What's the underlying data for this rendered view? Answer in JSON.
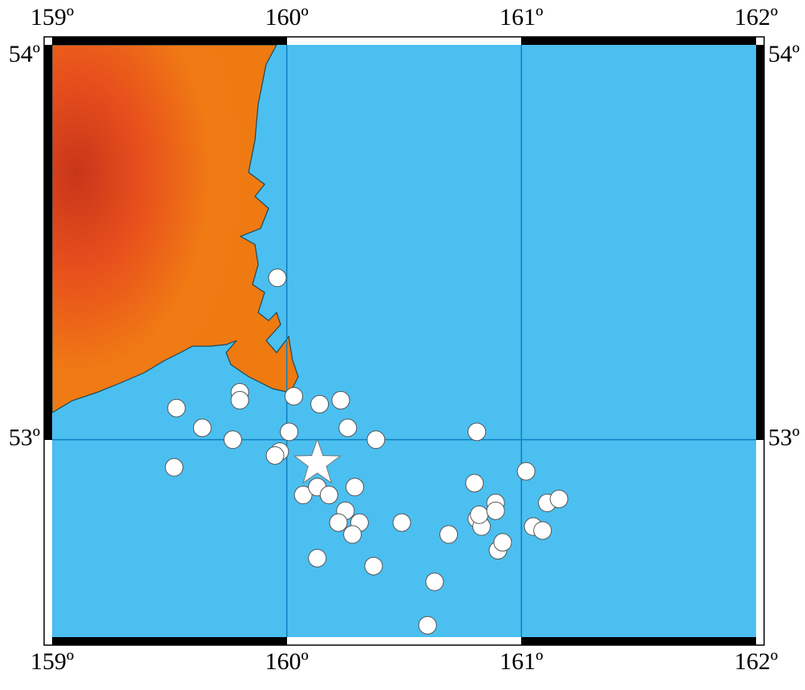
{
  "chart_data": {
    "type": "map",
    "xlim": [
      159,
      162
    ],
    "ylim": [
      52.5,
      54
    ],
    "xticks": [
      {
        "value": 159,
        "label": "159º"
      },
      {
        "value": 160,
        "label": "160º"
      },
      {
        "value": 161,
        "label": "161º"
      },
      {
        "value": 162,
        "label": "162º"
      }
    ],
    "yticks": [
      {
        "value": 53,
        "label": "53º"
      },
      {
        "value": 54,
        "label": "54º"
      }
    ],
    "grid": true,
    "events": {
      "color": "#ffffff",
      "lon": [
        159.96,
        159.8,
        159.8,
        159.53,
        159.64,
        159.77,
        159.52,
        160.03,
        160.14,
        160.23,
        160.26,
        160.01,
        160.38,
        159.97,
        159.95,
        160.07,
        160.13,
        160.18,
        160.29,
        160.25,
        160.22,
        160.31,
        160.28,
        160.49,
        160.13,
        160.37,
        160.63,
        160.6,
        160.69,
        160.81,
        160.8,
        161.02,
        160.81,
        160.83,
        160.82,
        160.89,
        160.89,
        160.9,
        160.92,
        161.05,
        161.09,
        161.11,
        161.16
      ],
      "lat": [
        53.41,
        53.12,
        53.1,
        53.08,
        53.03,
        53.0,
        52.93,
        53.11,
        53.09,
        53.1,
        53.03,
        53.02,
        53.0,
        52.97,
        52.96,
        52.86,
        52.88,
        52.86,
        52.88,
        52.82,
        52.79,
        52.79,
        52.76,
        52.79,
        52.7,
        52.68,
        52.64,
        52.53,
        52.76,
        53.02,
        52.89,
        52.92,
        52.8,
        52.78,
        52.81,
        52.84,
        52.82,
        52.72,
        52.74,
        52.78,
        52.77,
        52.84,
        52.85
      ]
    },
    "mainshock": {
      "lon": 160.13,
      "lat": 52.94
    }
  }
}
